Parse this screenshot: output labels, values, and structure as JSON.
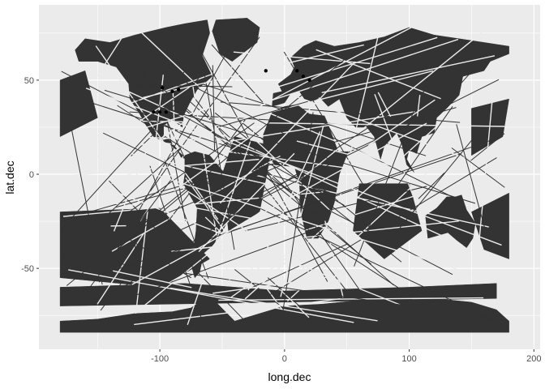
{
  "chart_data": {
    "type": "polygon-map",
    "title": "",
    "xlabel": "long.dec",
    "ylabel": "lat.dec",
    "xlim": [
      -197,
      205
    ],
    "ylim": [
      -93,
      90
    ],
    "x_ticks": [
      {
        "value": -100,
        "label": "-100"
      },
      {
        "value": 0,
        "label": "0"
      },
      {
        "value": 100,
        "label": "100"
      },
      {
        "value": 200,
        "label": "200"
      }
    ],
    "y_ticks": [
      {
        "value": -50,
        "label": "-50"
      },
      {
        "value": 0,
        "label": "0"
      },
      {
        "value": 50,
        "label": "50"
      }
    ],
    "grid": true,
    "colors": {
      "panel": "#ebebeb",
      "grid_major": "#ffffff",
      "fill": "#333333",
      "points": "#000000"
    },
    "land_polygons": [
      {
        "name": "north-america",
        "points": [
          [
            -168,
            66
          ],
          [
            -160,
            72
          ],
          [
            -140,
            70
          ],
          [
            -120,
            74
          ],
          [
            -95,
            78
          ],
          [
            -80,
            80
          ],
          [
            -62,
            82
          ],
          [
            -60,
            75
          ],
          [
            -66,
            63
          ],
          [
            -58,
            52
          ],
          [
            -70,
            45
          ],
          [
            -76,
            38
          ],
          [
            -81,
            31
          ],
          [
            -82,
            25
          ],
          [
            -90,
            29
          ],
          [
            -97,
            26
          ],
          [
            -97,
            20
          ],
          [
            -92,
            18
          ],
          [
            -87,
            14
          ],
          [
            -83,
            9
          ],
          [
            -78,
            8
          ],
          [
            -92,
            16
          ],
          [
            -105,
            20
          ],
          [
            -112,
            27
          ],
          [
            -117,
            33
          ],
          [
            -124,
            40
          ],
          [
            -125,
            48
          ],
          [
            -135,
            57
          ],
          [
            -150,
            60
          ],
          [
            -165,
            60
          ]
        ]
      },
      {
        "name": "greenland",
        "points": [
          [
            -55,
            82
          ],
          [
            -30,
            83
          ],
          [
            -20,
            78
          ],
          [
            -22,
            70
          ],
          [
            -42,
            60
          ],
          [
            -52,
            64
          ],
          [
            -58,
            76
          ]
        ]
      },
      {
        "name": "south-america",
        "points": [
          [
            -80,
            10
          ],
          [
            -72,
            12
          ],
          [
            -60,
            10
          ],
          [
            -50,
            2
          ],
          [
            -35,
            -5
          ],
          [
            -38,
            -15
          ],
          [
            -45,
            -24
          ],
          [
            -52,
            -33
          ],
          [
            -58,
            -38
          ],
          [
            -65,
            -42
          ],
          [
            -68,
            -52
          ],
          [
            -72,
            -55
          ],
          [
            -75,
            -48
          ],
          [
            -73,
            -40
          ],
          [
            -71,
            -30
          ],
          [
            -70,
            -18
          ],
          [
            -77,
            -10
          ],
          [
            -81,
            -5
          ],
          [
            -80,
            0
          ]
        ]
      },
      {
        "name": "europe-asia",
        "points": [
          [
            -10,
            36
          ],
          [
            -9,
            43
          ],
          [
            -2,
            44
          ],
          [
            -5,
            48
          ],
          [
            5,
            53
          ],
          [
            8,
            57
          ],
          [
            5,
            62
          ],
          [
            15,
            68
          ],
          [
            25,
            71
          ],
          [
            40,
            68
          ],
          [
            60,
            70
          ],
          [
            80,
            73
          ],
          [
            100,
            78
          ],
          [
            120,
            74
          ],
          [
            140,
            72
          ],
          [
            160,
            70
          ],
          [
            180,
            68
          ],
          [
            180,
            64
          ],
          [
            165,
            60
          ],
          [
            160,
            55
          ],
          [
            143,
            52
          ],
          [
            140,
            42
          ],
          [
            130,
            35
          ],
          [
            122,
            30
          ],
          [
            120,
            22
          ],
          [
            110,
            20
          ],
          [
            106,
            11
          ],
          [
            100,
            13
          ],
          [
            98,
            8
          ],
          [
            104,
            1
          ],
          [
            98,
            5
          ],
          [
            94,
            16
          ],
          [
            90,
            22
          ],
          [
            80,
            15
          ],
          [
            77,
            8
          ],
          [
            72,
            20
          ],
          [
            66,
            25
          ],
          [
            57,
            25
          ],
          [
            50,
            30
          ],
          [
            44,
            40
          ],
          [
            35,
            36
          ],
          [
            28,
            41
          ],
          [
            22,
            38
          ],
          [
            16,
            40
          ],
          [
            12,
            44
          ],
          [
            5,
            43
          ],
          [
            0,
            38
          ]
        ]
      },
      {
        "name": "africa",
        "points": [
          [
            -17,
            21
          ],
          [
            -10,
            33
          ],
          [
            0,
            36
          ],
          [
            10,
            37
          ],
          [
            20,
            32
          ],
          [
            32,
            31
          ],
          [
            34,
            28
          ],
          [
            43,
            12
          ],
          [
            51,
            12
          ],
          [
            44,
            0
          ],
          [
            40,
            -15
          ],
          [
            35,
            -25
          ],
          [
            27,
            -34
          ],
          [
            18,
            -34
          ],
          [
            13,
            -20
          ],
          [
            12,
            -5
          ],
          [
            8,
            4
          ],
          [
            -8,
            5
          ],
          [
            -17,
            14
          ]
        ]
      },
      {
        "name": "australia",
        "points": [
          [
            113,
            -22
          ],
          [
            122,
            -18
          ],
          [
            130,
            -12
          ],
          [
            137,
            -12
          ],
          [
            142,
            -11
          ],
          [
            146,
            -19
          ],
          [
            153,
            -26
          ],
          [
            151,
            -34
          ],
          [
            146,
            -39
          ],
          [
            138,
            -35
          ],
          [
            131,
            -31
          ],
          [
            115,
            -34
          ]
        ]
      },
      {
        "name": "antarctica",
        "points": [
          [
            -180,
            -78
          ],
          [
            -150,
            -77
          ],
          [
            -120,
            -74
          ],
          [
            -90,
            -73
          ],
          [
            -75,
            -71
          ],
          [
            -60,
            -64
          ],
          [
            -55,
            -68
          ],
          [
            -40,
            -78
          ],
          [
            -20,
            -74
          ],
          [
            0,
            -70
          ],
          [
            30,
            -69
          ],
          [
            60,
            -67
          ],
          [
            90,
            -66
          ],
          [
            120,
            -66
          ],
          [
            150,
            -68
          ],
          [
            170,
            -72
          ],
          [
            180,
            -78
          ],
          [
            180,
            -84
          ],
          [
            -180,
            -84
          ]
        ]
      },
      {
        "name": "artefact-pacific-west",
        "points": [
          [
            -180,
            -20
          ],
          [
            -100,
            -18
          ],
          [
            -60,
            -45
          ],
          [
            -100,
            -60
          ],
          [
            -180,
            -55
          ]
        ]
      },
      {
        "name": "artefact-pacific-east",
        "points": [
          [
            150,
            -20
          ],
          [
            180,
            -10
          ],
          [
            180,
            -45
          ],
          [
            160,
            -40
          ]
        ]
      },
      {
        "name": "artefact-atlantic",
        "points": [
          [
            -40,
            20
          ],
          [
            -10,
            15
          ],
          [
            -20,
            -20
          ],
          [
            -45,
            -30
          ],
          [
            -50,
            0
          ]
        ]
      },
      {
        "name": "artefact-indian",
        "points": [
          [
            60,
            -5
          ],
          [
            100,
            -5
          ],
          [
            110,
            -30
          ],
          [
            80,
            -45
          ],
          [
            55,
            -30
          ]
        ]
      },
      {
        "name": "artefact-southern-band",
        "points": [
          [
            -180,
            -60
          ],
          [
            -80,
            -58
          ],
          [
            0,
            -62
          ],
          [
            100,
            -60
          ],
          [
            170,
            -58
          ],
          [
            170,
            -66
          ],
          [
            -180,
            -70
          ]
        ]
      },
      {
        "name": "artefact-north-pacific",
        "points": [
          [
            -180,
            50
          ],
          [
            -160,
            55
          ],
          [
            -150,
            30
          ],
          [
            -180,
            20
          ]
        ]
      },
      {
        "name": "artefact-ne-pacific",
        "points": [
          [
            150,
            35
          ],
          [
            180,
            40
          ],
          [
            175,
            20
          ],
          [
            150,
            10
          ]
        ]
      }
    ],
    "points": [
      {
        "x": -95,
        "y": 33
      },
      {
        "x": -100,
        "y": 33
      },
      {
        "x": -105,
        "y": 33
      },
      {
        "x": -98,
        "y": 46
      },
      {
        "x": -90,
        "y": 44
      },
      {
        "x": -85,
        "y": 45
      },
      {
        "x": 10,
        "y": 55
      },
      {
        "x": 15,
        "y": 52
      },
      {
        "x": 20,
        "y": 50
      },
      {
        "x": -15,
        "y": 55
      }
    ]
  }
}
